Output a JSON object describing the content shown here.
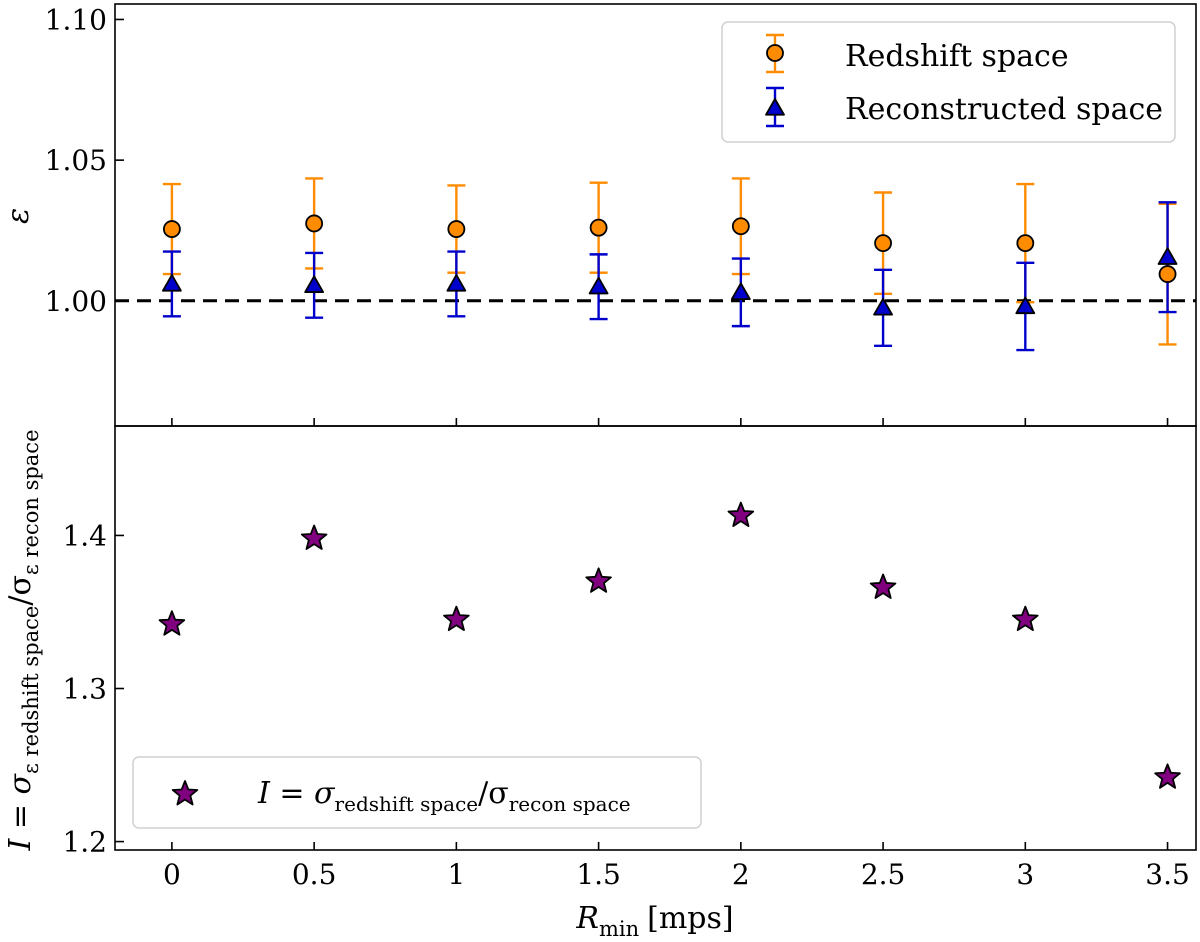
{
  "chart_data": [
    {
      "type": "scatter",
      "panel": "top",
      "ylabel": "ε",
      "xlim": [
        -0.2,
        3.6
      ],
      "ylim": [
        0.9555,
        1.1055
      ],
      "yticks": [
        {
          "value": 1.0,
          "label": "1.00"
        },
        {
          "value": 1.05,
          "label": "1.05"
        },
        {
          "value": 1.1,
          "label": "1.10"
        }
      ],
      "reference_line": {
        "y": 1.0,
        "style": "dashed",
        "color": "#000000"
      },
      "legend_position": "top-right",
      "x": [
        0,
        0.5,
        1,
        1.5,
        2,
        2.5,
        3,
        3.5
      ],
      "series": [
        {
          "name": "Redshift space",
          "marker": "circle",
          "color": "#ff8c00",
          "values": [
            1.0255,
            1.0275,
            1.0255,
            1.026,
            1.0265,
            1.0205,
            1.0205,
            1.0095
          ],
          "errors": [
            0.016,
            0.016,
            0.0155,
            0.016,
            0.017,
            0.018,
            0.021,
            0.025
          ]
        },
        {
          "name": "Reconstructed space",
          "marker": "triangle",
          "color": "#0000cc",
          "values": [
            1.006,
            1.0055,
            1.006,
            1.005,
            1.003,
            0.9975,
            0.998,
            1.0155
          ],
          "errors": [
            0.0115,
            0.0115,
            0.0115,
            0.0115,
            0.012,
            0.0135,
            0.0155,
            0.0195
          ]
        }
      ]
    },
    {
      "type": "scatter",
      "panel": "bottom",
      "xlabel": "R",
      "xlabel_sub": "min",
      "xlabel_unit": "[mps]",
      "ylabel": "I = σ",
      "ylabel_sub": "ε redshift space",
      "ylabel_mid": "/σ",
      "ylabel_sub2": "ε recon space",
      "xlim": [
        -0.2,
        3.6
      ],
      "ylim": [
        1.1945,
        1.4715
      ],
      "xticks": [
        {
          "value": 0,
          "label": "0"
        },
        {
          "value": 0.5,
          "label": "0.5"
        },
        {
          "value": 1,
          "label": "1"
        },
        {
          "value": 1.5,
          "label": "1.5"
        },
        {
          "value": 2,
          "label": "2"
        },
        {
          "value": 2.5,
          "label": "2.5"
        },
        {
          "value": 3,
          "label": "3"
        },
        {
          "value": 3.5,
          "label": "3.5"
        }
      ],
      "yticks": [
        {
          "value": 1.2,
          "label": "1.2"
        },
        {
          "value": 1.3,
          "label": "1.3"
        },
        {
          "value": 1.4,
          "label": "1.4"
        }
      ],
      "legend_position": "lower-left",
      "x": [
        0,
        0.5,
        1,
        1.5,
        2,
        2.5,
        3,
        3.5
      ],
      "series": [
        {
          "name": "I = σ",
          "name_sub": "redshift space",
          "name_mid": "/σ",
          "name_sub2": "recon space",
          "marker": "star",
          "color": "#800080",
          "values": [
            1.342,
            1.398,
            1.345,
            1.37,
            1.413,
            1.366,
            1.345,
            1.242
          ]
        }
      ]
    }
  ]
}
